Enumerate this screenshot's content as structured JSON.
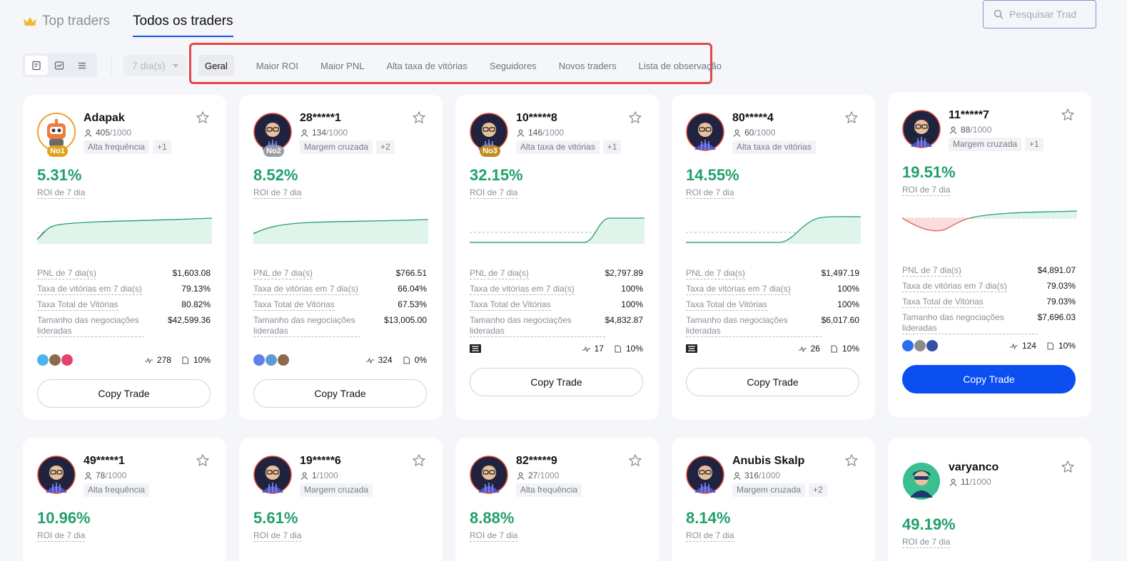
{
  "header": {
    "tab_top": "Top traders",
    "tab_all": "Todos os traders",
    "search_placeholder": "Pesquisar Trad"
  },
  "toolbar": {
    "period": "7 dia(s)",
    "filters": [
      "Geral",
      "Maior ROI",
      "Maior PNL",
      "Alta taxa de vitórias",
      "Seguidores",
      "Novos traders",
      "Lista de observação"
    ],
    "active_filter": "Geral"
  },
  "labels": {
    "roi_label": "ROI de 7 dia",
    "pnl": "PNL de 7 dia(s)",
    "win_rate_7d": "Taxa de vitórias em 7 dia(s)",
    "total_win_rate": "Taxa Total de Vitórias",
    "lead_size": "Tamanho das negociações lideradas",
    "copy_trade": "Copy Trade"
  },
  "colors": {
    "accent": "#0b4ff0",
    "positive": "#22a06b",
    "negative": "#e05a5a",
    "highlight_box": "#e24848"
  },
  "cards": [
    {
      "name": "Adapak",
      "followers": "405",
      "cap": "/1000",
      "rank": "No1",
      "tags": [
        "Alta frequência",
        "+1"
      ],
      "roi": "5.31%",
      "pnl": "$1,603.08",
      "win7": "79.13%",
      "winTotal": "80.82%",
      "size": "$42,599.36",
      "trades": "278",
      "share": "10%"
    },
    {
      "name": "28*****1",
      "followers": "134",
      "cap": "/1000",
      "rank": "No2",
      "tags": [
        "Margem cruzada",
        "+2"
      ],
      "roi": "8.52%",
      "pnl": "$766.51",
      "win7": "66.04%",
      "winTotal": "67.53%",
      "size": "$13,005.00",
      "trades": "324",
      "share": "0%"
    },
    {
      "name": "10*****8",
      "followers": "146",
      "cap": "/1000",
      "rank": "No3",
      "tags": [
        "Alta taxa de vitórias",
        "+1"
      ],
      "roi": "32.15%",
      "pnl": "$2,797.89",
      "win7": "100%",
      "winTotal": "100%",
      "size": "$4,832.87",
      "trades": "17",
      "share": "10%"
    },
    {
      "name": "80*****4",
      "followers": "60",
      "cap": "/1000",
      "rank": "",
      "tags": [
        "Alta taxa de vitórias"
      ],
      "roi": "14.55%",
      "pnl": "$1,497.19",
      "win7": "100%",
      "winTotal": "100%",
      "size": "$6,017.60",
      "trades": "26",
      "share": "10%"
    },
    {
      "name": "11*****7",
      "followers": "88",
      "cap": "/1000",
      "rank": "",
      "tags": [
        "Margem cruzada",
        "+1"
      ],
      "roi": "19.51%",
      "pnl": "$4,891.07",
      "win7": "79.03%",
      "winTotal": "79.03%",
      "size": "$7,696.03",
      "trades": "124",
      "share": "10%"
    },
    {
      "name": "49*****1",
      "followers": "78",
      "cap": "/1000",
      "rank": "",
      "tags": [
        "Alta frequência"
      ],
      "roi": "10.96%"
    },
    {
      "name": "19*****6",
      "followers": "1",
      "cap": "/1000",
      "rank": "",
      "tags": [
        "Margem cruzada"
      ],
      "roi": "5.61%"
    },
    {
      "name": "82*****9",
      "followers": "27",
      "cap": "/1000",
      "rank": "",
      "tags": [
        "Alta frequência"
      ],
      "roi": "8.88%"
    },
    {
      "name": "Anubis Skalp",
      "followers": "316",
      "cap": "/1000",
      "rank": "",
      "tags": [
        "Margem cruzada",
        "+2"
      ],
      "roi": "8.14%"
    },
    {
      "name": "varyanco",
      "followers": "11",
      "cap": "/1000",
      "rank": "",
      "tags": [],
      "roi": "49.19%"
    }
  ]
}
